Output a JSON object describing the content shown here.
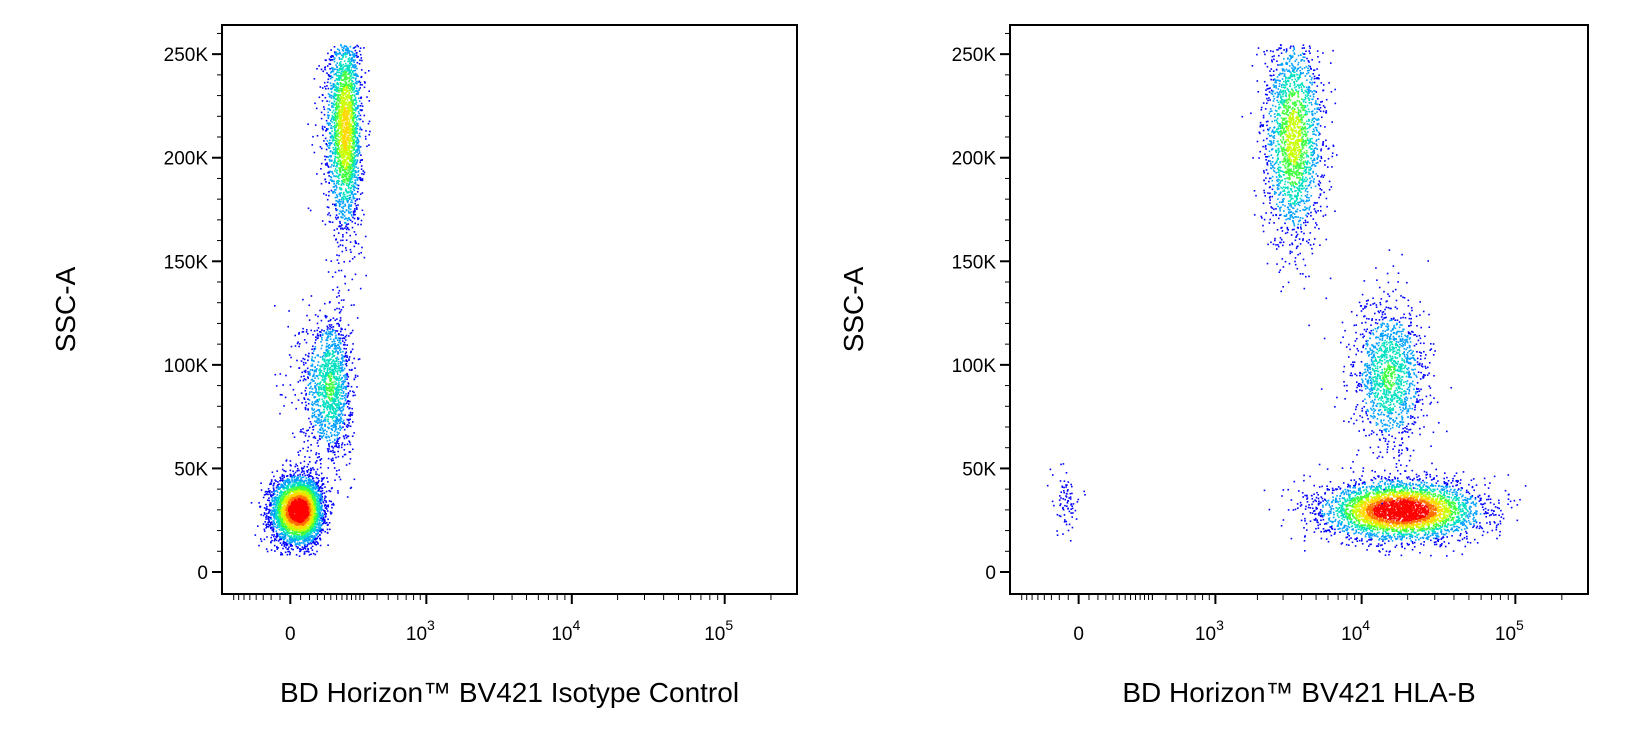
{
  "colors": {
    "background": "#ffffff",
    "axis": "#000000",
    "density_scale": [
      "#0000ff",
      "#00a0ff",
      "#00e0c0",
      "#40ff40",
      "#c8ff00",
      "#ffd800",
      "#ff7000",
      "#ff0000"
    ]
  },
  "chart_data": [
    {
      "type": "scatter",
      "style": "pseudocolor density dot plot",
      "title": "",
      "xlabel": "BD Horizon™ BV421 Isotype Control",
      "ylabel": "SSC-A",
      "x_scale": "biexponential",
      "y_scale": "linear",
      "ylim": [
        0,
        262144
      ],
      "x_ticks": [
        {
          "value": 0,
          "label": "0"
        },
        {
          "value": 1000,
          "base": "10",
          "exp": "3"
        },
        {
          "value": 10000,
          "base": "10",
          "exp": "4"
        },
        {
          "value": 100000,
          "base": "10",
          "exp": "5"
        }
      ],
      "y_ticks": [
        {
          "value": 0,
          "label": "0"
        },
        {
          "value": 50000,
          "label": "50K"
        },
        {
          "value": 100000,
          "label": "100K"
        },
        {
          "value": 150000,
          "label": "150K"
        },
        {
          "value": 200000,
          "label": "200K"
        },
        {
          "value": 250000,
          "label": "250K"
        }
      ],
      "grid": false,
      "populations": [
        {
          "name_visible": false,
          "x_center": 20,
          "x_spread": 35,
          "y_center": 30000,
          "y_spread": 8000,
          "relative_density": 1.0
        },
        {
          "name_visible": false,
          "x_center": 120,
          "x_spread": 50,
          "y_center": 90000,
          "y_spread": 18000,
          "relative_density": 0.35
        },
        {
          "name_visible": false,
          "x_center": 190,
          "x_spread": 45,
          "y_center": 215000,
          "y_spread": 25000,
          "relative_density": 0.6
        }
      ]
    },
    {
      "type": "scatter",
      "style": "pseudocolor density dot plot",
      "title": "",
      "xlabel": "BD Horizon™ BV421 HLA-B",
      "ylabel": "SSC-A",
      "x_scale": "biexponential",
      "y_scale": "linear",
      "ylim": [
        0,
        262144
      ],
      "x_ticks": [
        {
          "value": 0,
          "label": "0"
        },
        {
          "value": 1000,
          "base": "10",
          "exp": "3"
        },
        {
          "value": 10000,
          "base": "10",
          "exp": "4"
        },
        {
          "value": 100000,
          "base": "10",
          "exp": "5"
        }
      ],
      "y_ticks": [
        {
          "value": 0,
          "label": "0"
        },
        {
          "value": 50000,
          "label": "50K"
        },
        {
          "value": 100000,
          "label": "100K"
        },
        {
          "value": 150000,
          "label": "150K"
        },
        {
          "value": 200000,
          "label": "200K"
        },
        {
          "value": 250000,
          "label": "250K"
        }
      ],
      "grid": false,
      "populations": [
        {
          "name_visible": false,
          "x_center": 18000,
          "x_spread_log10": 0.25,
          "y_center": 30000,
          "y_spread": 7000,
          "relative_density": 1.0
        },
        {
          "name_visible": false,
          "x_center": 15000,
          "x_spread_log10": 0.12,
          "y_center": 95000,
          "y_spread": 18000,
          "relative_density": 0.35
        },
        {
          "name_visible": false,
          "x_center": 3500,
          "x_spread_log10": 0.1,
          "y_center": 210000,
          "y_spread": 25000,
          "relative_density": 0.5
        },
        {
          "name_visible": false,
          "x_center": -30,
          "x_spread": 20,
          "y_center": 35000,
          "y_spread": 8000,
          "relative_density": 0.02
        }
      ]
    }
  ]
}
